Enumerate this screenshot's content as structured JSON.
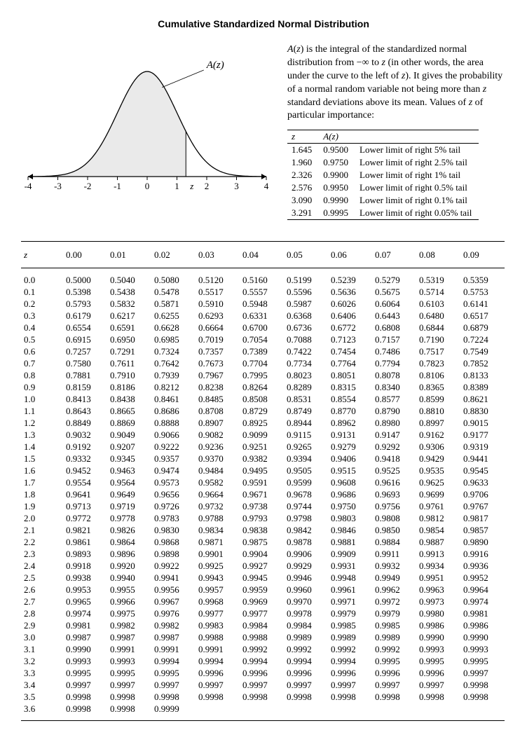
{
  "title": "Cumulative Standardized Normal Distribution",
  "chart": {
    "label": "A(z)",
    "axis_min": -4,
    "axis_max": 4,
    "z_marker": 1.3,
    "ticks": [
      -4,
      -3,
      -2,
      -1,
      0,
      1,
      2,
      3,
      4
    ],
    "z_tick_pos": 1.5,
    "z_tick_label": "z",
    "fill_color": "#eaeaea",
    "stroke_color": "#000000",
    "axis_color": "#000000"
  },
  "explanation": "A(z) is the integral of the standardized normal distribution from −∞ to z (in other words, the area under the curve to the left of z).  It gives the probability of a normal random variable not being more than z standard deviations above its mean.  Values of z of particular importance:",
  "critical": {
    "headers": [
      "z",
      "A(z)",
      ""
    ],
    "rows": [
      [
        "1.645",
        "0.9500",
        "Lower limit of right 5% tail"
      ],
      [
        "1.960",
        "0.9750",
        "Lower limit of right 2.5% tail"
      ],
      [
        "2.326",
        "0.9900",
        "Lower limit of right 1% tail"
      ],
      [
        "2.576",
        "0.9950",
        "Lower limit of right 0.5% tail"
      ],
      [
        "3.090",
        "0.9990",
        "Lower limit of right 0.1% tail"
      ],
      [
        "3.291",
        "0.9995",
        "Lower limit of right 0.05% tail"
      ]
    ]
  },
  "main_table": {
    "row_header": "z",
    "col_headers": [
      "0.00",
      "0.01",
      "0.02",
      "0.03",
      "0.04",
      "0.05",
      "0.06",
      "0.07",
      "0.08",
      "0.09"
    ],
    "rows": [
      {
        "z": "0.0",
        "v": [
          "0.5000",
          "0.5040",
          "0.5080",
          "0.5120",
          "0.5160",
          "0.5199",
          "0.5239",
          "0.5279",
          "0.5319",
          "0.5359"
        ]
      },
      {
        "z": "0.1",
        "v": [
          "0.5398",
          "0.5438",
          "0.5478",
          "0.5517",
          "0.5557",
          "0.5596",
          "0.5636",
          "0.5675",
          "0.5714",
          "0.5753"
        ]
      },
      {
        "z": "0.2",
        "v": [
          "0.5793",
          "0.5832",
          "0.5871",
          "0.5910",
          "0.5948",
          "0.5987",
          "0.6026",
          "0.6064",
          "0.6103",
          "0.6141"
        ]
      },
      {
        "z": "0.3",
        "v": [
          "0.6179",
          "0.6217",
          "0.6255",
          "0.6293",
          "0.6331",
          "0.6368",
          "0.6406",
          "0.6443",
          "0.6480",
          "0.6517"
        ]
      },
      {
        "z": "0.4",
        "v": [
          "0.6554",
          "0.6591",
          "0.6628",
          "0.6664",
          "0.6700",
          "0.6736",
          "0.6772",
          "0.6808",
          "0.6844",
          "0.6879"
        ]
      },
      {
        "z": "0.5",
        "v": [
          "0.6915",
          "0.6950",
          "0.6985",
          "0.7019",
          "0.7054",
          "0.7088",
          "0.7123",
          "0.7157",
          "0.7190",
          "0.7224"
        ]
      },
      {
        "z": "0.6",
        "v": [
          "0.7257",
          "0.7291",
          "0.7324",
          "0.7357",
          "0.7389",
          "0.7422",
          "0.7454",
          "0.7486",
          "0.7517",
          "0.7549"
        ]
      },
      {
        "z": "0.7",
        "v": [
          "0.7580",
          "0.7611",
          "0.7642",
          "0.7673",
          "0.7704",
          "0.7734",
          "0.7764",
          "0.7794",
          "0.7823",
          "0.7852"
        ]
      },
      {
        "z": "0.8",
        "v": [
          "0.7881",
          "0.7910",
          "0.7939",
          "0.7967",
          "0.7995",
          "0.8023",
          "0.8051",
          "0.8078",
          "0.8106",
          "0.8133"
        ]
      },
      {
        "z": "0.9",
        "v": [
          "0.8159",
          "0.8186",
          "0.8212",
          "0.8238",
          "0.8264",
          "0.8289",
          "0.8315",
          "0.8340",
          "0.8365",
          "0.8389"
        ]
      },
      {
        "z": "1.0",
        "v": [
          "0.8413",
          "0.8438",
          "0.8461",
          "0.8485",
          "0.8508",
          "0.8531",
          "0.8554",
          "0.8577",
          "0.8599",
          "0.8621"
        ]
      },
      {
        "z": "1.1",
        "v": [
          "0.8643",
          "0.8665",
          "0.8686",
          "0.8708",
          "0.8729",
          "0.8749",
          "0.8770",
          "0.8790",
          "0.8810",
          "0.8830"
        ]
      },
      {
        "z": "1.2",
        "v": [
          "0.8849",
          "0.8869",
          "0.8888",
          "0.8907",
          "0.8925",
          "0.8944",
          "0.8962",
          "0.8980",
          "0.8997",
          "0.9015"
        ]
      },
      {
        "z": "1.3",
        "v": [
          "0.9032",
          "0.9049",
          "0.9066",
          "0.9082",
          "0.9099",
          "0.9115",
          "0.9131",
          "0.9147",
          "0.9162",
          "0.9177"
        ]
      },
      {
        "z": "1.4",
        "v": [
          "0.9192",
          "0.9207",
          "0.9222",
          "0.9236",
          "0.9251",
          "0.9265",
          "0.9279",
          "0.9292",
          "0.9306",
          "0.9319"
        ]
      },
      {
        "z": "1.5",
        "v": [
          "0.9332",
          "0.9345",
          "0.9357",
          "0.9370",
          "0.9382",
          "0.9394",
          "0.9406",
          "0.9418",
          "0.9429",
          "0.9441"
        ]
      },
      {
        "z": "1.6",
        "v": [
          "0.9452",
          "0.9463",
          "0.9474",
          "0.9484",
          "0.9495",
          "0.9505",
          "0.9515",
          "0.9525",
          "0.9535",
          "0.9545"
        ]
      },
      {
        "z": "1.7",
        "v": [
          "0.9554",
          "0.9564",
          "0.9573",
          "0.9582",
          "0.9591",
          "0.9599",
          "0.9608",
          "0.9616",
          "0.9625",
          "0.9633"
        ]
      },
      {
        "z": "1.8",
        "v": [
          "0.9641",
          "0.9649",
          "0.9656",
          "0.9664",
          "0.9671",
          "0.9678",
          "0.9686",
          "0.9693",
          "0.9699",
          "0.9706"
        ]
      },
      {
        "z": "1.9",
        "v": [
          "0.9713",
          "0.9719",
          "0.9726",
          "0.9732",
          "0.9738",
          "0.9744",
          "0.9750",
          "0.9756",
          "0.9761",
          "0.9767"
        ]
      },
      {
        "z": "2.0",
        "v": [
          "0.9772",
          "0.9778",
          "0.9783",
          "0.9788",
          "0.9793",
          "0.9798",
          "0.9803",
          "0.9808",
          "0.9812",
          "0.9817"
        ]
      },
      {
        "z": "2.1",
        "v": [
          "0.9821",
          "0.9826",
          "0.9830",
          "0.9834",
          "0.9838",
          "0.9842",
          "0.9846",
          "0.9850",
          "0.9854",
          "0.9857"
        ]
      },
      {
        "z": "2.2",
        "v": [
          "0.9861",
          "0.9864",
          "0.9868",
          "0.9871",
          "0.9875",
          "0.9878",
          "0.9881",
          "0.9884",
          "0.9887",
          "0.9890"
        ]
      },
      {
        "z": "2.3",
        "v": [
          "0.9893",
          "0.9896",
          "0.9898",
          "0.9901",
          "0.9904",
          "0.9906",
          "0.9909",
          "0.9911",
          "0.9913",
          "0.9916"
        ]
      },
      {
        "z": "2.4",
        "v": [
          "0.9918",
          "0.9920",
          "0.9922",
          "0.9925",
          "0.9927",
          "0.9929",
          "0.9931",
          "0.9932",
          "0.9934",
          "0.9936"
        ]
      },
      {
        "z": "2.5",
        "v": [
          "0.9938",
          "0.9940",
          "0.9941",
          "0.9943",
          "0.9945",
          "0.9946",
          "0.9948",
          "0.9949",
          "0.9951",
          "0.9952"
        ]
      },
      {
        "z": "2.6",
        "v": [
          "0.9953",
          "0.9955",
          "0.9956",
          "0.9957",
          "0.9959",
          "0.9960",
          "0.9961",
          "0.9962",
          "0.9963",
          "0.9964"
        ]
      },
      {
        "z": "2.7",
        "v": [
          "0.9965",
          "0.9966",
          "0.9967",
          "0.9968",
          "0.9969",
          "0.9970",
          "0.9971",
          "0.9972",
          "0.9973",
          "0.9974"
        ]
      },
      {
        "z": "2.8",
        "v": [
          "0.9974",
          "0.9975",
          "0.9976",
          "0.9977",
          "0.9977",
          "0.9978",
          "0.9979",
          "0.9979",
          "0.9980",
          "0.9981"
        ]
      },
      {
        "z": "2.9",
        "v": [
          "0.9981",
          "0.9982",
          "0.9982",
          "0.9983",
          "0.9984",
          "0.9984",
          "0.9985",
          "0.9985",
          "0.9986",
          "0.9986"
        ]
      },
      {
        "z": "3.0",
        "v": [
          "0.9987",
          "0.9987",
          "0.9987",
          "0.9988",
          "0.9988",
          "0.9989",
          "0.9989",
          "0.9989",
          "0.9990",
          "0.9990"
        ]
      },
      {
        "z": "3.1",
        "v": [
          "0.9990",
          "0.9991",
          "0.9991",
          "0.9991",
          "0.9992",
          "0.9992",
          "0.9992",
          "0.9992",
          "0.9993",
          "0.9993"
        ]
      },
      {
        "z": "3.2",
        "v": [
          "0.9993",
          "0.9993",
          "0.9994",
          "0.9994",
          "0.9994",
          "0.9994",
          "0.9994",
          "0.9995",
          "0.9995",
          "0.9995"
        ]
      },
      {
        "z": "3.3",
        "v": [
          "0.9995",
          "0.9995",
          "0.9995",
          "0.9996",
          "0.9996",
          "0.9996",
          "0.9996",
          "0.9996",
          "0.9996",
          "0.9997"
        ]
      },
      {
        "z": "3.4",
        "v": [
          "0.9997",
          "0.9997",
          "0.9997",
          "0.9997",
          "0.9997",
          "0.9997",
          "0.9997",
          "0.9997",
          "0.9997",
          "0.9998"
        ]
      },
      {
        "z": "3.5",
        "v": [
          "0.9998",
          "0.9998",
          "0.9998",
          "0.9998",
          "0.9998",
          "0.9998",
          "0.9998",
          "0.9998",
          "0.9998",
          "0.9998"
        ]
      },
      {
        "z": "3.6",
        "v": [
          "0.9998",
          "0.9998",
          "0.9999",
          "",
          "",
          "",
          "",
          "",
          "",
          ""
        ]
      }
    ]
  }
}
